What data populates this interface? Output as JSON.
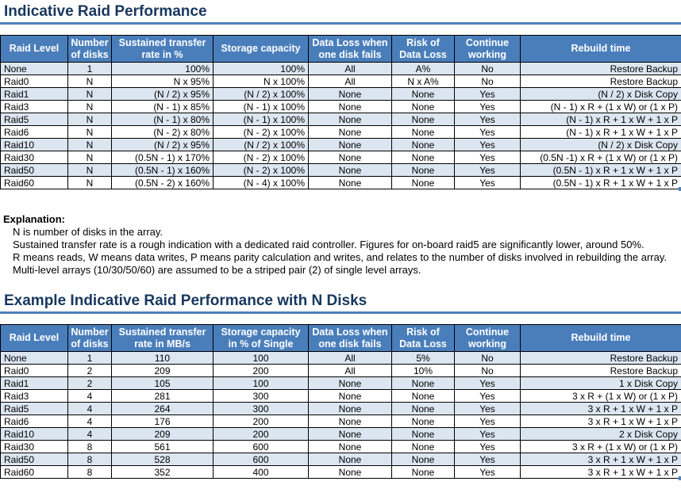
{
  "page": {
    "title1": "Indicative Raid Performance",
    "title2": "Example Indicative Raid Performance with N Disks"
  },
  "colors": {
    "header_bg": "#4A7EBB",
    "row_alt_bg": "#DCE6F1",
    "title_text": "#17375D",
    "rule": "#4E81BD"
  },
  "explanation": {
    "label": "Explanation:",
    "lines": [
      "N is number of disks in the array.",
      "Sustained transfer rate is a rough indication with a dedicated raid controller. Figures for on-board raid5 are significantly lower, around 50%.",
      "R means reads, W means data writes, P means parity calculation and writes, and relates to the number of disks involved in rebuilding the array.",
      "Multi-level arrays (10/30/50/60) are assumed to be a striped pair (2) of single level arrays."
    ]
  },
  "tables": {
    "indicative": {
      "headers": [
        "Raid Level",
        "Number\nof disks",
        "Sustained transfer\nrate in %",
        "Storage capacity",
        "Data Loss when\none disk fails",
        "Risk of\nData Loss",
        "Continue\nworking",
        "Rebuild time"
      ],
      "rows": [
        [
          "None",
          "1",
          "100%",
          "100%",
          "All",
          "A%",
          "No",
          "Restore Backup"
        ],
        [
          "Raid0",
          "N",
          "N x 95%",
          "N x 100%",
          "All",
          "N x A%",
          "No",
          "Restore Backup"
        ],
        [
          "Raid1",
          "N",
          "(N / 2) x 95%",
          "(N / 2) x 100%",
          "None",
          "None",
          "Yes",
          "(N / 2) x Disk Copy"
        ],
        [
          "Raid3",
          "N",
          "(N - 1) x 85%",
          "(N - 1) x 100%",
          "None",
          "None",
          "Yes",
          "(N - 1) x R + (1 x W) or (1 x P)"
        ],
        [
          "Raid5",
          "N",
          "(N - 1) x 80%",
          "(N - 1) x 100%",
          "None",
          "None",
          "Yes",
          "(N - 1) x R + 1 x W + 1 x P"
        ],
        [
          "Raid6",
          "N",
          "(N - 2) x 80%",
          "(N - 2) x 100%",
          "None",
          "None",
          "Yes",
          "(N - 1) x R + 1 x W + 1 x P"
        ],
        [
          "Raid10",
          "N",
          "(N / 2) x 95%",
          "(N / 2) x 100%",
          "None",
          "None",
          "Yes",
          "(N / 2) x Disk Copy"
        ],
        [
          "Raid30",
          "N",
          "(0.5N - 1) x 170%",
          "(N - 2) x 100%",
          "None",
          "None",
          "Yes",
          "(0.5N -1) x R + (1 x W) or (1 x P)"
        ],
        [
          "Raid50",
          "N",
          "(0.5N - 1) x 160%",
          "(N - 2) x 100%",
          "None",
          "None",
          "Yes",
          "(0.5N - 1) x R + 1 x W + 1 x P"
        ],
        [
          "Raid60",
          "N",
          "(0.5N - 2) x 160%",
          "(N - 4) x 100%",
          "None",
          "None",
          "Yes",
          "(0.5N - 1) x R + 1 x W + 1 x P"
        ]
      ]
    },
    "example": {
      "headers": [
        "Raid Level",
        "Number\nof disks",
        "Sustained transfer\nrate in MB/s",
        "Storage capacity\nin % of Single",
        "Data Loss when\none disk fails",
        "Risk of\nData Loss",
        "Continue\nworking",
        "Rebuild time"
      ],
      "rows": [
        [
          "None",
          "1",
          "110",
          "100",
          "All",
          "5%",
          "No",
          "Restore Backup"
        ],
        [
          "Raid0",
          "2",
          "209",
          "200",
          "All",
          "10%",
          "No",
          "Restore Backup"
        ],
        [
          "Raid1",
          "2",
          "105",
          "100",
          "None",
          "None",
          "Yes",
          "1 x Disk Copy"
        ],
        [
          "Raid3",
          "4",
          "281",
          "300",
          "None",
          "None",
          "Yes",
          "3 x R + (1 x W) or (1 x P)"
        ],
        [
          "Raid5",
          "4",
          "264",
          "300",
          "None",
          "None",
          "Yes",
          "3 x R + 1 x W + 1 x P"
        ],
        [
          "Raid6",
          "4",
          "176",
          "200",
          "None",
          "None",
          "Yes",
          "3 x R + 1 x W + 1 x P"
        ],
        [
          "Raid10",
          "4",
          "209",
          "200",
          "None",
          "None",
          "Yes",
          "2 x Disk Copy"
        ],
        [
          "Raid30",
          "8",
          "561",
          "600",
          "None",
          "None",
          "Yes",
          "3 x R + (1 x W) or (1 x P)"
        ],
        [
          "Raid50",
          "8",
          "528",
          "600",
          "None",
          "None",
          "Yes",
          "3 x R + 1 x W + 1 x P"
        ],
        [
          "Raid60",
          "8",
          "352",
          "400",
          "None",
          "None",
          "Yes",
          "3 x R + 1 x W + 1 x P"
        ]
      ]
    }
  }
}
